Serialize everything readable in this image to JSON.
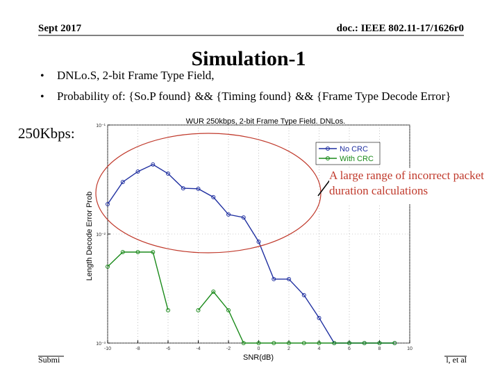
{
  "header": {
    "date": "Sept 2017",
    "doc": "doc.: IEEE 802.11-17/1626r0"
  },
  "title": "Simulation-1",
  "bullets": [
    "DNLo.S, 2-bit Frame Type Field,",
    "Probability of: {So.P found} && {Timing found} && {Frame Type Decode Error}"
  ],
  "rate_label": "250Kbps:",
  "annotation": "A large range of incorrect packet duration calculations",
  "footer": {
    "left": "Submi",
    "right": "l, et al"
  },
  "chart_data": {
    "type": "line",
    "title": "WUR 250kbps, 2-bit Frame Type Field. DNLos.",
    "x_label": "SNR(dB)",
    "y_label": "Length Decode Error Prob",
    "x": [
      -10,
      -9,
      -8,
      -7,
      -6,
      -5,
      -4,
      -3,
      -2,
      -1,
      0,
      1,
      2,
      3,
      4,
      5,
      6,
      7,
      8,
      9
    ],
    "series": [
      {
        "name": "No CRC",
        "color": "#1f2fa0",
        "values": [
          0.0188,
          0.03,
          0.0374,
          0.0434,
          0.0358,
          0.0263,
          0.026,
          0.0218,
          0.0151,
          0.0142,
          0.0085,
          0.00386,
          0.00386,
          0.00275,
          0.0017,
          0.001,
          0.001,
          0.001,
          0.001,
          0.001
        ]
      },
      {
        "name": "With CRC",
        "color": "#1a8a1a",
        "values": [
          0.00502,
          0.00683,
          0.00683,
          0.00683,
          0.002,
          null,
          0.002,
          0.00296,
          0.002,
          0.001,
          0.001,
          0.001,
          0.001,
          0.001,
          0.001,
          0.001,
          0.001,
          0.001,
          0.001,
          0.001
        ]
      }
    ],
    "xlim": [
      -10,
      10
    ],
    "xticks": [
      -10,
      -8,
      -6,
      -4,
      -2,
      0,
      2,
      4,
      6,
      8,
      10
    ],
    "ylim": [
      0.001,
      0.1
    ],
    "log_y": true,
    "yticks": [
      {
        "value": 0.001,
        "label": "10⁻³"
      },
      {
        "value": 0.01,
        "label": "10⁻²"
      },
      {
        "value": 0.1,
        "label": "10⁻¹"
      }
    ],
    "grid": true,
    "legend": "upper right"
  }
}
